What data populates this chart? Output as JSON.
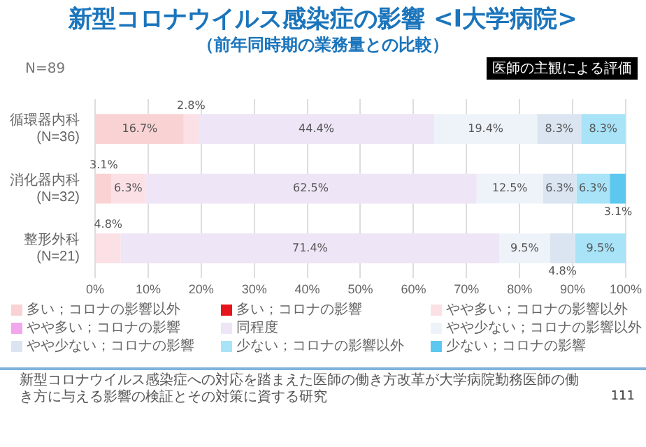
{
  "chart_data": {
    "type": "bar",
    "orientation": "horizontal",
    "stacked": true,
    "title": "新型コロナウイルス感染症の影響 <I大学病院>",
    "subtitle": "（前年同時期の業務量との比較）",
    "categories": [
      "循環器内科\n(N=36)",
      "消化器内科\n(N=32)",
      "整形外科\n(N=21)"
    ],
    "series": [
      {
        "name": "多い；コロナの影響以外",
        "color": "#f9d3d3",
        "values": [
          16.7,
          3.1,
          0
        ],
        "value_labels": [
          "16.7%",
          "3.1%",
          null
        ]
      },
      {
        "name": "多い；コロナの影響",
        "color": "#e8141c",
        "values": [
          0,
          0,
          0
        ],
        "value_labels": [
          null,
          null,
          null
        ]
      },
      {
        "name": "やや多い；コロナの影響以外",
        "color": "#fbe1e6",
        "values": [
          2.8,
          6.3,
          4.8
        ],
        "value_labels": [
          "2.8%",
          "6.3%",
          "4.8%"
        ]
      },
      {
        "name": "やや多い；コロナの影響",
        "color": "#f2a7ec",
        "values": [
          0,
          0,
          0
        ],
        "value_labels": [
          null,
          null,
          null
        ]
      },
      {
        "name": "同程度",
        "color": "#eee5f6",
        "values": [
          44.4,
          62.5,
          71.4
        ],
        "value_labels": [
          "44.4%",
          "62.5%",
          "71.4%"
        ]
      },
      {
        "name": "やや少ない；コロナの影響以外",
        "color": "#eef3f9",
        "values": [
          19.4,
          12.5,
          9.5
        ],
        "value_labels": [
          "19.4%",
          "12.5%",
          "9.5%"
        ]
      },
      {
        "name": "やや少ない；コロナの影響",
        "color": "#dbe5f1",
        "values": [
          8.3,
          6.3,
          4.8
        ],
        "value_labels": [
          "8.3%",
          "6.3%",
          "4.8%"
        ]
      },
      {
        "name": "少ない；コロナの影響以外",
        "color": "#a8e3f8",
        "values": [
          8.3,
          6.3,
          9.5
        ],
        "value_labels": [
          "8.3%",
          "6.3%",
          "9.5%"
        ]
      },
      {
        "name": "少ない；コロナの影響",
        "color": "#5cc8ef",
        "values": [
          0,
          3.1,
          0
        ],
        "value_labels": [
          null,
          "3.1%",
          null
        ]
      }
    ],
    "xlim": [
      0,
      100
    ],
    "xticks": [
      {
        "value": 0,
        "label": "0%"
      },
      {
        "value": 10,
        "label": "10%"
      },
      {
        "value": 20,
        "label": "20%"
      },
      {
        "value": 30,
        "label": "30%"
      },
      {
        "value": 40,
        "label": "40%"
      },
      {
        "value": 50,
        "label": "50%"
      },
      {
        "value": 60,
        "label": "60%"
      },
      {
        "value": 70,
        "label": "70%"
      },
      {
        "value": 80,
        "label": "80%"
      },
      {
        "value": 90,
        "label": "90%"
      },
      {
        "value": 100,
        "label": "100%"
      }
    ],
    "grid": "x",
    "legend": "bottom",
    "annotations": [
      "N=89",
      "医師の主観による評価",
      "新型コロナウイルス感染症への対応を踏まえた医師の働き方改革が大学病院勤務医師の働き方に与える影響の検証とその対策に資する研究",
      "111"
    ]
  }
}
